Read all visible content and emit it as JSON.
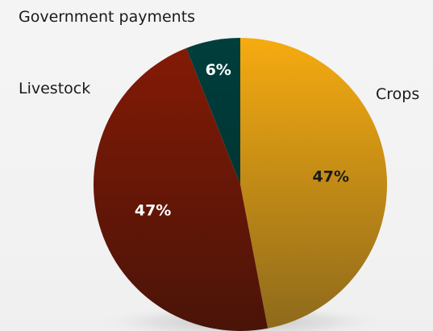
{
  "chart_data": {
    "type": "pie",
    "categories": [
      "Crops",
      "Livestock",
      "Government payments"
    ],
    "values": [
      47,
      47,
      6
    ],
    "value_labels": [
      "47%",
      "47%",
      "6%"
    ],
    "colors": {
      "Crops": [
        "#f6ab10",
        "#8e6a1c"
      ],
      "Livestock": [
        "#831a06",
        "#4a1408"
      ],
      "Government payments": [
        "#003e3c",
        "#003533"
      ]
    },
    "label_colors": {
      "Crops": "#1a1a1a",
      "Livestock": "#ffffff",
      "Government payments": "#ffffff"
    },
    "start": "12 o'clock, clockwise",
    "legend": "none"
  }
}
